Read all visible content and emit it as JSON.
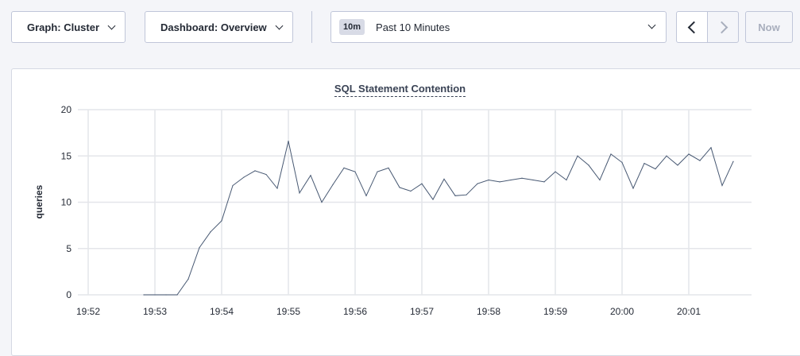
{
  "toolbar": {
    "graph_label": "Graph: Cluster",
    "dashboard_label": "Dashboard: Overview",
    "time_badge": "10m",
    "time_label": "Past 10 Minutes",
    "now_label": "Now"
  },
  "chart_data": {
    "type": "line",
    "title": "SQL Statement Contention",
    "ylabel": "queries",
    "xlabel": "",
    "ylim": [
      0,
      20
    ],
    "yticks": [
      0,
      5,
      10,
      15,
      20
    ],
    "xticks": [
      "19:52",
      "19:53",
      "19:54",
      "19:55",
      "19:56",
      "19:57",
      "19:58",
      "19:59",
      "20:00",
      "20:01"
    ],
    "grid": true,
    "line_color": "#475872",
    "x": [
      "19:52:50",
      "19:53:00",
      "19:53:10",
      "19:53:20",
      "19:53:30",
      "19:53:40",
      "19:53:50",
      "19:54:00",
      "19:54:10",
      "19:54:20",
      "19:54:30",
      "19:54:40",
      "19:54:50",
      "19:55:00",
      "19:55:10",
      "19:55:20",
      "19:55:30",
      "19:55:40",
      "19:55:50",
      "19:56:00",
      "19:56:10",
      "19:56:20",
      "19:56:30",
      "19:56:40",
      "19:56:50",
      "19:57:00",
      "19:57:10",
      "19:57:20",
      "19:57:30",
      "19:57:40",
      "19:57:50",
      "19:58:00",
      "19:58:10",
      "19:58:20",
      "19:58:30",
      "19:58:40",
      "19:58:50",
      "19:59:00",
      "19:59:10",
      "19:59:20",
      "19:59:30",
      "19:59:40",
      "19:59:50",
      "20:00:00",
      "20:00:10",
      "20:00:20",
      "20:00:30",
      "20:00:40",
      "20:00:50",
      "20:01:00",
      "20:01:10",
      "20:01:20",
      "20:01:30",
      "20:01:40"
    ],
    "values": [
      0,
      0,
      0,
      0,
      1.7,
      5.1,
      6.8,
      8.0,
      11.8,
      12.7,
      13.4,
      13.0,
      11.5,
      16.6,
      11.0,
      12.9,
      10.0,
      11.9,
      13.7,
      13.3,
      10.7,
      13.3,
      13.7,
      11.6,
      11.2,
      12.0,
      10.3,
      12.5,
      10.7,
      10.8,
      12.0,
      12.4,
      12.2,
      12.4,
      12.6,
      12.4,
      12.2,
      13.3,
      12.4,
      15.0,
      14.0,
      12.4,
      15.2,
      14.3,
      11.5,
      14.2,
      13.6,
      15.0,
      14.0,
      15.2,
      14.5,
      15.9,
      11.8,
      14.4
    ]
  }
}
